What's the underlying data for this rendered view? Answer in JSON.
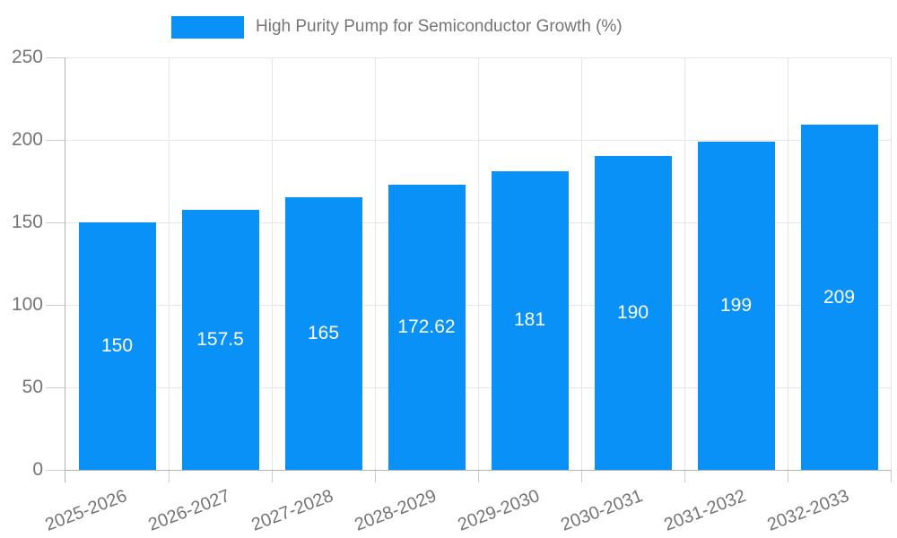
{
  "legend": {
    "label": "High Purity Pump for Semiconductor Growth (%)",
    "swatch_icon": "legend-swatch",
    "swatch_color": "#0a91f8"
  },
  "chart_data": {
    "type": "bar",
    "title": "High Purity Pump for Semiconductor Growth (%)",
    "categories": [
      "2025-2026",
      "2026-2027",
      "2027-2028",
      "2028-2029",
      "2029-2030",
      "2030-2031",
      "2031-2032",
      "2032-2033"
    ],
    "values": [
      150,
      157.5,
      165,
      172.62,
      181,
      190,
      199,
      209
    ],
    "bar_labels": [
      "150",
      "157.5",
      "165",
      "172.62",
      "181",
      "190",
      "199",
      "209"
    ],
    "xlabel": "",
    "ylabel": "",
    "ylim": [
      0,
      250
    ],
    "yticks": [
      0,
      50,
      100,
      150,
      200,
      250
    ],
    "grid": true,
    "legend_position": "top",
    "bar_color": "#0a91f8",
    "bar_label_color": "#ffffff",
    "axis_text_color": "#757575",
    "gridline_color": "#e6e6e6",
    "axis_line_color": "#b3b3b3"
  }
}
